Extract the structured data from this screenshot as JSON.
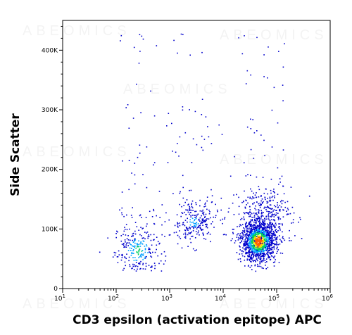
{
  "watermark": "ABEOMICS",
  "chart_data": {
    "type": "scatter",
    "xlabel": "CD3 epsilon (activation epitope) APC",
    "ylabel": "Side Scatter",
    "x_scale": "log",
    "xlim": [
      10,
      1000000
    ],
    "ylim": [
      0,
      450000
    ],
    "x_ticks": [
      {
        "value": 10,
        "base": "10",
        "exp": "1"
      },
      {
        "value": 100,
        "base": "10",
        "exp": "2"
      },
      {
        "value": 1000,
        "base": "10",
        "exp": "3"
      },
      {
        "value": 10000,
        "base": "10",
        "exp": "4"
      },
      {
        "value": 100000,
        "base": "10",
        "exp": "5"
      },
      {
        "value": 1000000,
        "base": "10",
        "exp": "6"
      }
    ],
    "y_ticks": [
      {
        "value": 0,
        "label": "0"
      },
      {
        "value": 100000,
        "label": "100K"
      },
      {
        "value": 200000,
        "label": "200K"
      },
      {
        "value": 300000,
        "label": "300K"
      },
      {
        "value": 400000,
        "label": "400K"
      }
    ],
    "grid": false,
    "density_colors": [
      "#0000cc",
      "#00a0ff",
      "#00d060",
      "#f0e000",
      "#ff6000"
    ],
    "populations": [
      {
        "x_center": 250,
        "y_center": 65000,
        "x_spread_decades": 0.22,
        "y_spread": 22000,
        "size": 260,
        "peak": 0.55
      },
      {
        "x_center": 2800,
        "y_center": 112000,
        "x_spread_decades": 0.22,
        "y_spread": 18000,
        "size": 230,
        "peak": 0.35
      },
      {
        "x_center": 45000,
        "y_center": 80000,
        "x_spread_decades": 0.16,
        "y_spread": 17000,
        "size": 1300,
        "peak": 1.0
      },
      {
        "x_center": 60000,
        "y_center": 120000,
        "x_spread_decades": 0.25,
        "y_spread": 30000,
        "size": 350,
        "peak": 0.3
      }
    ]
  }
}
